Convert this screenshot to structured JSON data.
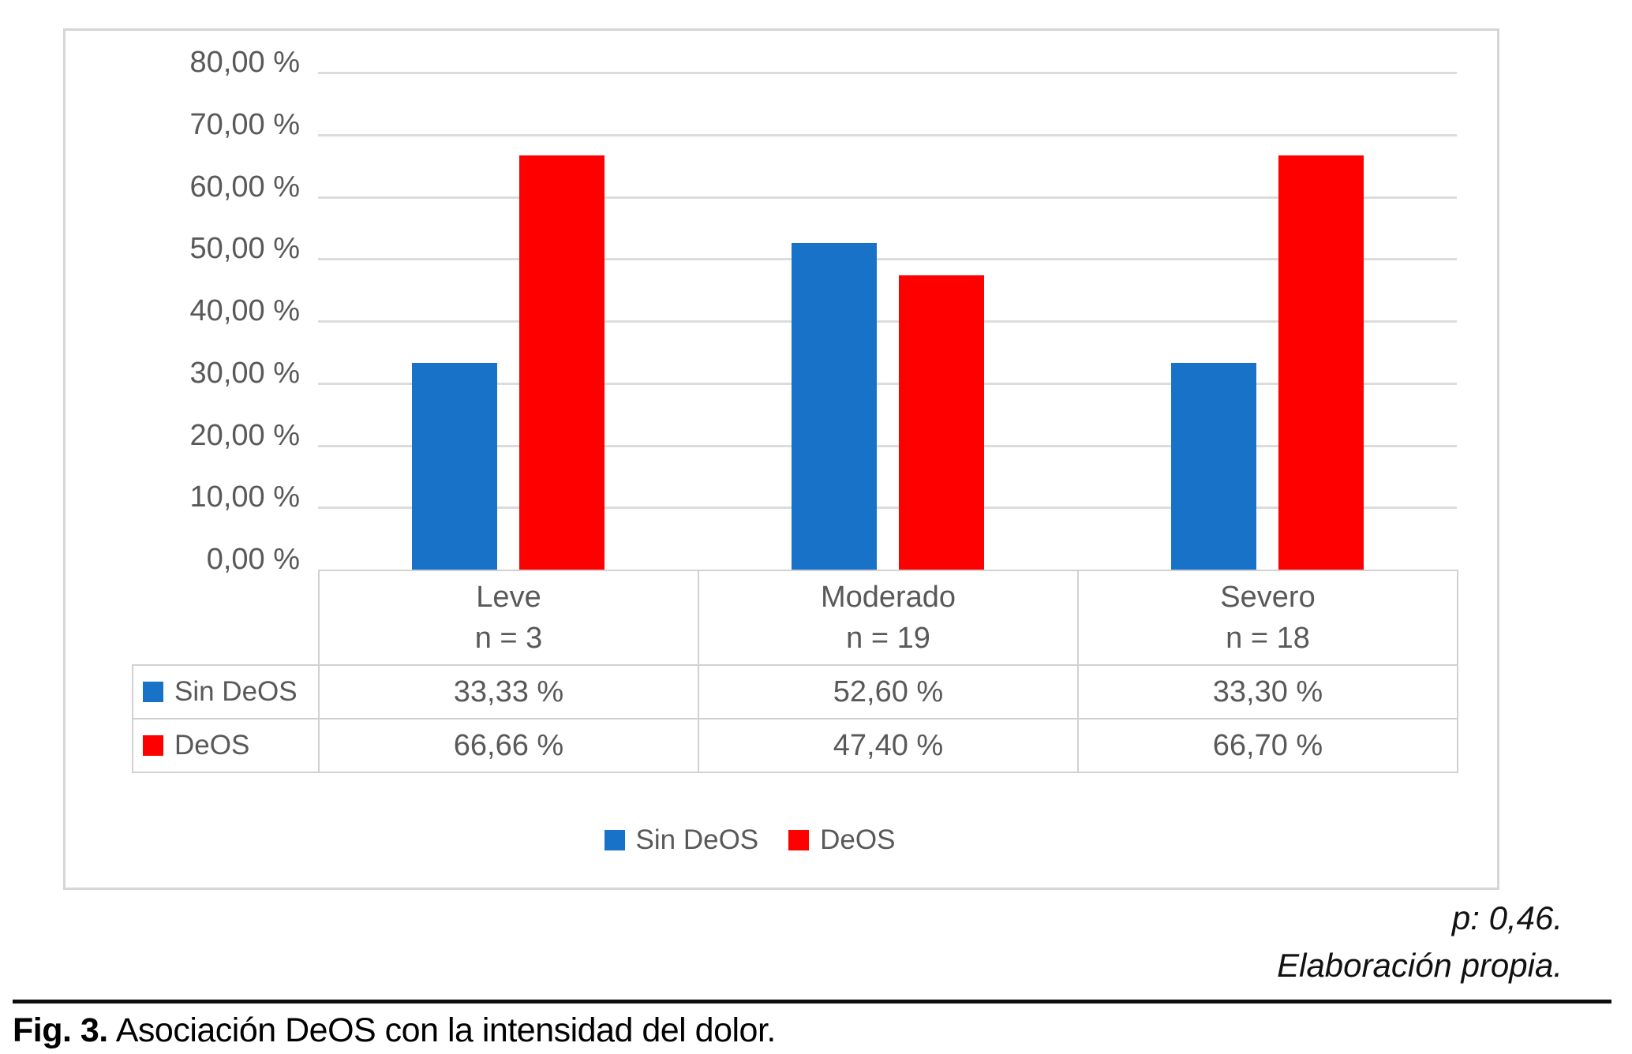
{
  "figure": {
    "p_value_note": "p: 0,46.",
    "source_note": "Elaboración propia.",
    "caption_label": "Fig. 3.",
    "caption_text": "Asociación DeOS con la intensidad del dolor."
  },
  "chart_data": {
    "type": "bar",
    "title": "",
    "categories": [
      "Leve",
      "Moderado",
      "Severo"
    ],
    "category_sublabels": [
      "n = 3",
      "n = 19",
      "n = 18"
    ],
    "series": [
      {
        "name": "Sin DeOS",
        "color": "#1772c8",
        "values": [
          33.33,
          52.6,
          33.3
        ],
        "value_labels": [
          "33,33 %",
          "52,60 %",
          "33,30 %"
        ]
      },
      {
        "name": "DeOS",
        "color": "#fe0000",
        "values": [
          66.66,
          47.4,
          66.7
        ],
        "value_labels": [
          "66,66 %",
          "47,40 %",
          "66,70 %"
        ]
      }
    ],
    "ylim": [
      0,
      80
    ],
    "y_tick_step": 10,
    "y_tick_labels": [
      "0,00 %",
      "10,00 %",
      "20,00 %",
      "30,00 %",
      "40,00 %",
      "50,00 %",
      "60,00 %",
      "70,00 %",
      "80,00 %"
    ],
    "grid": true,
    "legend_position": "bottom",
    "data_table_shown": true
  }
}
